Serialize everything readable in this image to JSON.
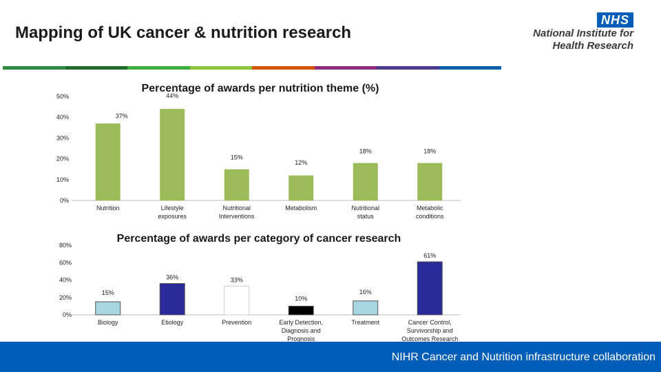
{
  "header": {
    "title": "Mapping of UK cancer & nutrition research",
    "logo_box": "NHS",
    "logo_line1": "National Institute for",
    "logo_line2": "Health Research"
  },
  "stripe_colors": [
    "#2b8a3e",
    "#1f6b2a",
    "#3cae3c",
    "#8cc540",
    "#d35400",
    "#8e2c80",
    "#4b3a8f",
    "#0b5ea8"
  ],
  "footer": {
    "text": "NIHR Cancer and Nutrition infrastructure collaboration",
    "color": "#005eb8"
  },
  "chart_data": [
    {
      "type": "bar",
      "title": "Percentage of awards per nutrition theme (%)",
      "categories": [
        "Nutrition",
        "Lifestyle exposures",
        "Nutritional Interventions",
        "Metabolism",
        "Nutritional status",
        "Metabolic conditions"
      ],
      "values": [
        37,
        44,
        15,
        12,
        18,
        18
      ],
      "data_labels": [
        "37%",
        "44%",
        "15%",
        "12%",
        "18%",
        "18%"
      ],
      "ylim": [
        0,
        50
      ],
      "yticks": [
        "0%",
        "10%",
        "20%",
        "30%",
        "40%",
        "50%"
      ],
      "bar_color": "#9bbb59",
      "grid": false
    },
    {
      "type": "bar",
      "title": "Percentage of awards per category of cancer research",
      "categories": [
        "Biology",
        "Etiology",
        "Prevention",
        "Early Detection, Diagnosis and Prognosis",
        "Treatment",
        "Cancer Control, Survivorship and Outcomes Research"
      ],
      "values": [
        15,
        36,
        33,
        10,
        16,
        61
      ],
      "data_labels": [
        "15%",
        "36%",
        "33%",
        "10%",
        "16%",
        "61%"
      ],
      "ylim": [
        0,
        80
      ],
      "yticks": [
        "0%",
        "20%",
        "40%",
        "60%",
        "80%"
      ],
      "bar_colors": [
        "#a8d5e2",
        "#2a2a9a",
        "#ffffff",
        "#000000",
        "#a8d5e2",
        "#2a2a9a"
      ],
      "grid": false
    }
  ]
}
